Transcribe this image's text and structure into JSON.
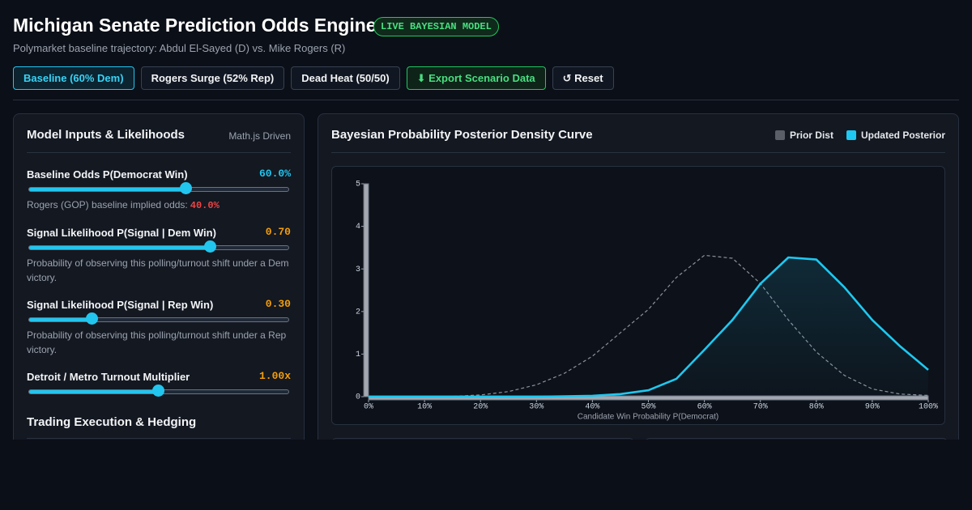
{
  "header": {
    "title": "Michigan Senate Prediction Odds Engine",
    "badge": "LIVE BAYESIAN MODEL",
    "subtitle": "Polymarket baseline trajectory: Abdul El-Sayed (D) vs. Mike Rogers (R)"
  },
  "toolbar": {
    "buttons": [
      "Baseline (60% Dem)",
      "Rogers Surge (52% Rep)",
      "Dead Heat (50/50)",
      "⬇ Export Scenario Data",
      "↺ Reset"
    ]
  },
  "inputs_panel": {
    "title": "Model Inputs & Likelihoods",
    "tag": "Math.js Driven",
    "sliders": [
      {
        "label": "Baseline Odds P(Democrat Win)",
        "value": "60.0%",
        "note": "Rogers (GOP) baseline implied odds:",
        "note_value": "40.0%"
      },
      {
        "label": "Signal Likelihood P(Signal | Dem Win)",
        "value": "0.70",
        "note": "Probability of observing this polling/turnout shift under a Dem victory."
      },
      {
        "label": "Signal Likelihood P(Signal | Rep Win)",
        "value": "0.30",
        "note": "Probability of observing this polling/turnout shift under a Rep victory."
      },
      {
        "label": "Detroit / Metro Turnout Multiplier",
        "value": "1.00x"
      }
    ],
    "section_title": "Trading Execution & Hedging"
  },
  "chart_data": {
    "type": "line",
    "title": "Bayesian Probability Posterior Density Curve",
    "x_label": "Candidate Win Probability P(Democrat)",
    "x": [
      0,
      5,
      10,
      15,
      20,
      25,
      30,
      35,
      40,
      45,
      50,
      55,
      60,
      65,
      70,
      75,
      80,
      85,
      90,
      95,
      100
    ],
    "series": [
      {
        "name": "Prior Dist",
        "color": "#8b929c",
        "legend_color": "#5b6068",
        "dashed": true,
        "fill": false,
        "values": [
          0,
          0,
          0,
          0.01,
          0.04,
          0.12,
          0.28,
          0.55,
          0.95,
          1.5,
          2.05,
          2.8,
          3.32,
          3.25,
          2.66,
          1.8,
          1.05,
          0.5,
          0.18,
          0.06,
          0.03
        ]
      },
      {
        "name": "Updated Posterior",
        "color": "#1ec8f0",
        "dashed": false,
        "fill": true,
        "values": [
          0,
          0,
          0,
          0,
          0,
          0,
          0,
          0.01,
          0.02,
          0.06,
          0.15,
          0.42,
          1.1,
          1.8,
          2.65,
          3.27,
          3.22,
          2.57,
          1.8,
          1.18,
          0.63
        ]
      }
    ],
    "xlim": [
      0,
      100
    ],
    "ylim": [
      0,
      5
    ],
    "xticks": [
      {
        "value": 0,
        "label": "0%"
      },
      {
        "value": 10,
        "label": "10%"
      },
      {
        "value": 20,
        "label": "20%"
      },
      {
        "value": 30,
        "label": "30%"
      },
      {
        "value": 40,
        "label": "40%"
      },
      {
        "value": 50,
        "label": "50%"
      },
      {
        "value": 60,
        "label": "60%"
      },
      {
        "value": 70,
        "label": "70%"
      },
      {
        "value": 80,
        "label": "80%"
      },
      {
        "value": 90,
        "label": "90%"
      },
      {
        "value": 100,
        "label": "100%"
      }
    ],
    "yticks": [
      0,
      1,
      2,
      3,
      4,
      5
    ],
    "grid": false
  }
}
